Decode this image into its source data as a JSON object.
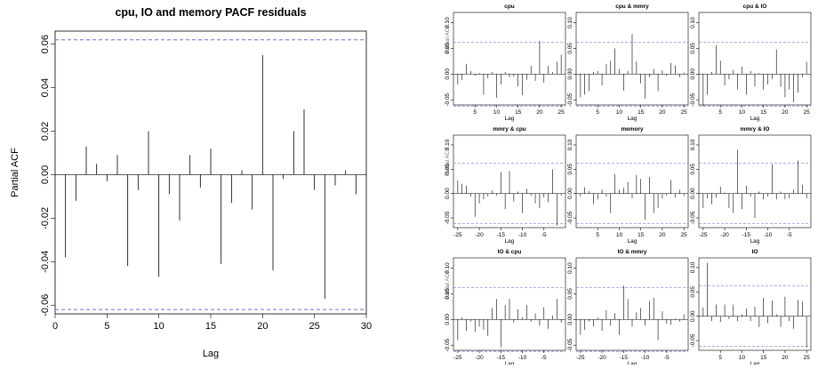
{
  "chart_data": [
    {
      "id": "main",
      "type": "bar",
      "title": "cpu, IO and memory PACF residuals",
      "xlabel": "Lag",
      "ylabel": "Partial ACF",
      "xlim": [
        0,
        30
      ],
      "ylim": [
        -0.064,
        0.066
      ],
      "xticks": [
        0,
        5,
        10,
        15,
        20,
        25,
        30
      ],
      "yticks": [
        -0.06,
        -0.04,
        -0.02,
        0.0,
        0.02,
        0.04,
        0.06
      ],
      "ytick_labels": [
        "-0.06",
        "-0.04",
        "-0.02",
        "0.00",
        "0.02",
        "0.04",
        "0.06"
      ],
      "conf_limit": 0.062,
      "x": [
        1,
        2,
        3,
        4,
        5,
        6,
        7,
        8,
        9,
        10,
        11,
        12,
        13,
        14,
        15,
        16,
        17,
        18,
        19,
        20,
        21,
        22,
        23,
        24,
        25,
        26,
        27,
        28,
        29
      ],
      "values": [
        -0.038,
        -0.012,
        0.013,
        0.005,
        -0.003,
        0.009,
        -0.042,
        -0.007,
        0.02,
        -0.047,
        -0.009,
        -0.021,
        0.009,
        -0.006,
        0.012,
        -0.041,
        -0.013,
        0.002,
        -0.016,
        0.055,
        -0.044,
        -0.002,
        0.02,
        0.03,
        -0.007,
        -0.057,
        -0.005,
        0.002,
        -0.009
      ]
    },
    {
      "id": "cpu",
      "type": "bar",
      "title": "cpu",
      "xlabel": "Lag",
      "ylabel": "",
      "xlim": [
        0,
        26
      ],
      "ylim": [
        -0.06,
        0.12
      ],
      "xticks": [
        5,
        10,
        15,
        20,
        25
      ],
      "yticks": [
        -0.05,
        0.0,
        0.05,
        0.1
      ],
      "ytick_labels": [
        "-0.05",
        "0.00",
        "0.05",
        "0.10"
      ],
      "conf_limit": 0.062,
      "x": [
        1,
        2,
        3,
        4,
        5,
        6,
        7,
        8,
        9,
        10,
        11,
        12,
        13,
        14,
        15,
        16,
        17,
        18,
        19,
        20,
        21,
        22,
        23,
        24,
        25
      ],
      "values": [
        -0.02,
        -0.011,
        0.02,
        0.006,
        -0.003,
        0.002,
        -0.04,
        -0.008,
        0.004,
        -0.046,
        -0.02,
        0.004,
        -0.006,
        -0.005,
        -0.024,
        -0.041,
        -0.011,
        0.016,
        -0.013,
        0.064,
        -0.017,
        0.016,
        0.004,
        0.024,
        0.038
      ]
    },
    {
      "id": "cpu-mmry",
      "type": "bar",
      "title": "cpu & mmry",
      "xlabel": "Lag",
      "ylabel": "",
      "xlim": [
        0,
        26
      ],
      "ylim": [
        -0.06,
        0.12
      ],
      "xticks": [
        5,
        10,
        15,
        20,
        25
      ],
      "yticks": [
        -0.05,
        0.0,
        0.05,
        0.1
      ],
      "ytick_labels": [
        "-0.05",
        "0.00",
        "0.05",
        "0.10"
      ],
      "conf_limit": 0.062,
      "x": [
        1,
        2,
        3,
        4,
        5,
        6,
        7,
        8,
        9,
        10,
        11,
        12,
        13,
        14,
        15,
        16,
        17,
        18,
        19,
        20,
        21,
        22,
        23,
        24,
        25
      ],
      "values": [
        -0.045,
        -0.04,
        -0.033,
        0.004,
        0.006,
        -0.022,
        0.02,
        0.026,
        0.05,
        0.01,
        -0.032,
        0.006,
        0.078,
        0.025,
        -0.018,
        -0.048,
        -0.006,
        0.01,
        -0.033,
        0.007,
        -0.003,
        0.022,
        0.017,
        -0.006,
        0.003
      ]
    },
    {
      "id": "cpu-io",
      "type": "bar",
      "title": "cpu & IO",
      "xlabel": "Lag",
      "ylabel": "",
      "xlim": [
        0,
        26
      ],
      "ylim": [
        -0.06,
        0.12
      ],
      "xticks": [
        5,
        10,
        15,
        20,
        25
      ],
      "yticks": [
        -0.05,
        0.0,
        0.05,
        0.1
      ],
      "ytick_labels": [
        "-0.05",
        "0.00",
        "0.05",
        "0.10"
      ],
      "conf_limit": 0.062,
      "x": [
        1,
        2,
        3,
        4,
        5,
        6,
        7,
        8,
        9,
        10,
        11,
        12,
        13,
        14,
        15,
        16,
        17,
        18,
        19,
        20,
        21,
        22,
        23,
        24,
        25
      ],
      "values": [
        -0.062,
        -0.04,
        0.004,
        0.056,
        0.026,
        -0.022,
        -0.01,
        0.008,
        -0.03,
        0.014,
        -0.04,
        0.006,
        -0.024,
        0.002,
        -0.03,
        -0.02,
        -0.01,
        0.048,
        -0.025,
        -0.045,
        -0.03,
        -0.055,
        -0.036,
        -0.006,
        0.024
      ]
    },
    {
      "id": "mmry-cpu",
      "type": "bar",
      "title": "mmry & cpu",
      "xlabel": "Lag",
      "ylabel": "",
      "xlim": [
        -26,
        0
      ],
      "ylim": [
        -0.07,
        0.12
      ],
      "xticks": [
        -25,
        -20,
        -15,
        -10,
        -5
      ],
      "yticks": [
        -0.05,
        0.0,
        0.05,
        0.1
      ],
      "ytick_labels": [
        "-0.05",
        "0.00",
        "0.05",
        "0.10"
      ],
      "conf_limit": 0.062,
      "x": [
        -25,
        -24,
        -23,
        -22,
        -21,
        -20,
        -19,
        -18,
        -17,
        -16,
        -15,
        -14,
        -13,
        -12,
        -11,
        -10,
        -9,
        -8,
        -7,
        -6,
        -5,
        -4,
        -3,
        -2,
        -1,
        0
      ],
      "values": [
        0.027,
        0.02,
        0.016,
        -0.006,
        -0.048,
        -0.02,
        -0.012,
        -0.006,
        0.006,
        -0.004,
        0.044,
        -0.032,
        0.046,
        -0.016,
        0.004,
        -0.04,
        0.01,
        -0.004,
        -0.02,
        -0.03,
        -0.008,
        -0.018,
        0.05,
        -0.066,
        -0.004,
        0.0
      ]
    },
    {
      "id": "memory",
      "type": "bar",
      "title": "memory",
      "xlabel": "Lag",
      "ylabel": "",
      "xlim": [
        0,
        26
      ],
      "ylim": [
        -0.07,
        0.12
      ],
      "xticks": [
        5,
        10,
        15,
        20,
        25
      ],
      "yticks": [
        -0.05,
        0.0,
        0.05,
        0.1
      ],
      "ytick_labels": [
        "-0.05",
        "0.00",
        "0.05",
        "0.10"
      ],
      "conf_limit": 0.062,
      "x": [
        1,
        2,
        3,
        4,
        5,
        6,
        7,
        8,
        9,
        10,
        11,
        12,
        13,
        14,
        15,
        16,
        17,
        18,
        19,
        20,
        21,
        22,
        23,
        24,
        25
      ],
      "values": [
        -0.006,
        0.013,
        0.005,
        -0.022,
        -0.012,
        0.008,
        -0.006,
        -0.04,
        0.04,
        0.008,
        0.012,
        0.024,
        -0.01,
        0.038,
        0.03,
        -0.054,
        0.034,
        -0.04,
        -0.03,
        -0.01,
        -0.004,
        0.028,
        -0.008,
        0.008,
        -0.005
      ]
    },
    {
      "id": "mmry-io",
      "type": "bar",
      "title": "mmry & IO",
      "xlabel": "Lag",
      "ylabel": "",
      "xlim": [
        -26,
        0
      ],
      "ylim": [
        -0.07,
        0.12
      ],
      "xticks": [
        -25,
        -20,
        -15,
        -10,
        -5
      ],
      "yticks": [
        -0.05,
        0.0,
        0.05,
        0.1
      ],
      "ytick_labels": [
        "-0.05",
        "0.00",
        "0.05",
        "0.10"
      ],
      "conf_limit": 0.062,
      "x": [
        -25,
        -24,
        -23,
        -22,
        -21,
        -20,
        -19,
        -18,
        -17,
        -16,
        -15,
        -14,
        -13,
        -12,
        -11,
        -10,
        -9,
        -8,
        -7,
        -6,
        -5,
        -4,
        -3,
        -2,
        -1,
        0
      ],
      "values": [
        -0.03,
        -0.01,
        -0.022,
        -0.008,
        0.014,
        0.002,
        -0.03,
        -0.04,
        0.09,
        -0.032,
        0.016,
        -0.006,
        -0.05,
        0.004,
        -0.012,
        -0.006,
        0.06,
        -0.012,
        0.004,
        -0.012,
        -0.01,
        0.008,
        0.068,
        0.018,
        -0.01,
        0.0
      ]
    },
    {
      "id": "io-cpu",
      "type": "bar",
      "title": "IO & cpu",
      "xlabel": "Lag",
      "ylabel": "",
      "xlim": [
        -26,
        0
      ],
      "ylim": [
        -0.06,
        0.12
      ],
      "xticks": [
        -25,
        -20,
        -15,
        -10,
        -5
      ],
      "yticks": [
        -0.05,
        0.0,
        0.05,
        0.1
      ],
      "ytick_labels": [
        "-0.05",
        "0.00",
        "0.05",
        "0.10"
      ],
      "conf_limit": 0.062,
      "x": [
        -25,
        -24,
        -23,
        -22,
        -21,
        -20,
        -19,
        -18,
        -17,
        -16,
        -15,
        -14,
        -13,
        -12,
        -11,
        -10,
        -9,
        -8,
        -7,
        -6,
        -5,
        -4,
        -3,
        -2,
        -1,
        0
      ],
      "values": [
        -0.04,
        0.004,
        -0.022,
        -0.004,
        -0.024,
        -0.014,
        -0.02,
        -0.032,
        0.022,
        0.04,
        -0.054,
        0.028,
        0.04,
        -0.006,
        0.02,
        0.004,
        0.028,
        -0.004,
        0.012,
        -0.012,
        0.024,
        -0.018,
        0.008,
        0.04,
        -0.006,
        0.0
      ]
    },
    {
      "id": "io-mmry",
      "type": "bar",
      "title": "IO & mmry",
      "xlabel": "Lag",
      "ylabel": "",
      "xlim": [
        -26,
        0
      ],
      "ylim": [
        -0.06,
        0.12
      ],
      "xticks": [
        -25,
        -20,
        -15,
        -10,
        -5
      ],
      "yticks": [
        -0.05,
        0.0,
        0.05,
        0.1
      ],
      "ytick_labels": [
        "-0.05",
        "0.00",
        "0.05",
        "0.10"
      ],
      "conf_limit": 0.062,
      "x": [
        -25,
        -24,
        -23,
        -22,
        -21,
        -20,
        -19,
        -18,
        -17,
        -16,
        -15,
        -14,
        -13,
        -12,
        -11,
        -10,
        -9,
        -8,
        -7,
        -6,
        -5,
        -4,
        -3,
        -2,
        -1,
        0
      ],
      "values": [
        -0.03,
        -0.02,
        -0.004,
        -0.014,
        0.004,
        -0.022,
        0.018,
        -0.012,
        0.012,
        -0.03,
        0.066,
        0.04,
        -0.014,
        0.014,
        0.022,
        -0.012,
        0.036,
        0.042,
        -0.04,
        0.016,
        -0.008,
        -0.01,
        0.002,
        -0.004,
        0.01,
        0.0
      ]
    },
    {
      "id": "io",
      "type": "bar",
      "title": "IO",
      "xlabel": "Lag",
      "ylabel": "",
      "xlim": [
        0,
        26
      ],
      "ylim": [
        -0.07,
        0.12
      ],
      "xticks": [
        5,
        10,
        15,
        20,
        25
      ],
      "yticks": [
        -0.05,
        0.0,
        0.05,
        0.1
      ],
      "ytick_labels": [
        "-0.05",
        "0.00",
        "0.05",
        "0.10"
      ],
      "conf_limit": 0.062,
      "x": [
        1,
        2,
        3,
        4,
        5,
        6,
        7,
        8,
        9,
        10,
        11,
        12,
        13,
        14,
        15,
        16,
        17,
        18,
        19,
        20,
        21,
        22,
        23,
        24,
        25
      ],
      "values": [
        0.018,
        0.11,
        -0.01,
        0.024,
        -0.012,
        0.024,
        -0.006,
        0.024,
        -0.01,
        0.004,
        0.016,
        -0.01,
        0.02,
        -0.022,
        0.038,
        -0.014,
        0.032,
        0.004,
        -0.022,
        0.04,
        -0.01,
        -0.026,
        0.034,
        0.03,
        -0.064
      ]
    }
  ],
  "colors": {
    "bars": "#000000",
    "zero_line": "#000000",
    "confidence": "#5b5bd6",
    "frame": "#000000"
  },
  "unreadable_ylabel_fragment": "Partial ACF"
}
